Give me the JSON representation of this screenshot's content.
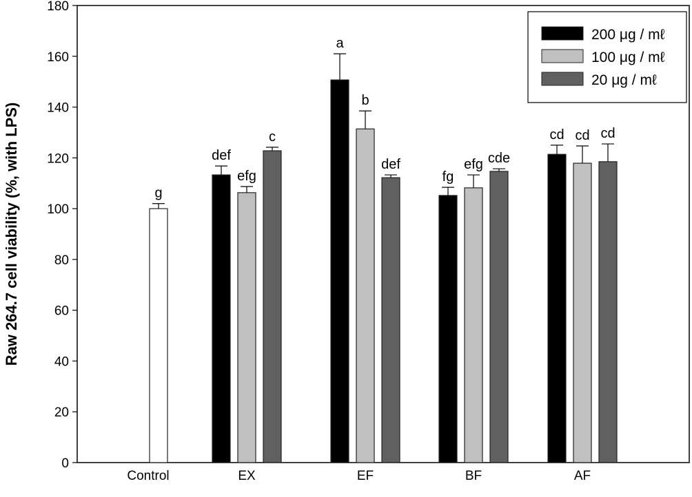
{
  "chart_data": {
    "type": "bar",
    "title": "",
    "xlabel": "",
    "ylabel": "Raw 264.7 cell viability (%, with LPS)",
    "ylim": [
      0,
      180
    ],
    "yticks": [
      0,
      20,
      40,
      60,
      80,
      100,
      120,
      140,
      160,
      180
    ],
    "grid": false,
    "legend_position": "top-right",
    "categories": [
      "Control",
      "EX",
      "EF",
      "BF",
      "AF"
    ],
    "control": {
      "value": 100,
      "error": 2,
      "label": "g",
      "color": "#ffffff"
    },
    "series": [
      {
        "name": "200 μg / mℓ",
        "color": "#000000",
        "values": [
          null,
          113.3,
          150.7,
          105.2,
          121.4
        ],
        "errors": [
          null,
          3.5,
          10.3,
          3.2,
          3.6
        ],
        "labels": [
          null,
          "def",
          "a",
          "fg",
          "cd"
        ]
      },
      {
        "name": "100 μg / mℓ",
        "color": "#c0c0c0",
        "values": [
          null,
          106.3,
          131.4,
          108.2,
          117.9
        ],
        "errors": [
          null,
          2.4,
          7.1,
          5.1,
          6.8
        ],
        "labels": [
          null,
          "efg",
          "b",
          "efg",
          "cd"
        ]
      },
      {
        "name": "20 μg / mℓ",
        "color": "#606060",
        "values": [
          null,
          122.8,
          112.2,
          114.7,
          118.5
        ],
        "errors": [
          null,
          1.4,
          1.1,
          1.0,
          7.0
        ],
        "labels": [
          null,
          "c",
          "def",
          "cde",
          "cd"
        ]
      }
    ]
  }
}
